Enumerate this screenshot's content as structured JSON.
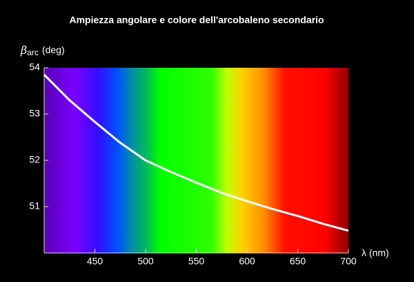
{
  "chart_data": {
    "type": "line",
    "title": "Ampiezza angolare e colore dell'arcobaleno secondario",
    "ylabel": [
      "β",
      "arc",
      "(deg)"
    ],
    "xlabel": "λ (nm)",
    "x": [
      400,
      425,
      450,
      475,
      500,
      525,
      550,
      575,
      600,
      625,
      650,
      675,
      700
    ],
    "series": [
      {
        "color": "#ffffff",
        "values": [
          53.85,
          53.3,
          52.83,
          52.38,
          52.0,
          51.75,
          51.52,
          51.3,
          51.12,
          50.95,
          50.8,
          50.63,
          50.48
        ]
      }
    ],
    "xlim": [
      400,
      700
    ],
    "xticks": [
      450,
      500,
      550,
      600,
      650,
      700
    ],
    "ylim": [
      50,
      54
    ],
    "yticks": [
      51,
      52,
      53,
      54
    ]
  }
}
